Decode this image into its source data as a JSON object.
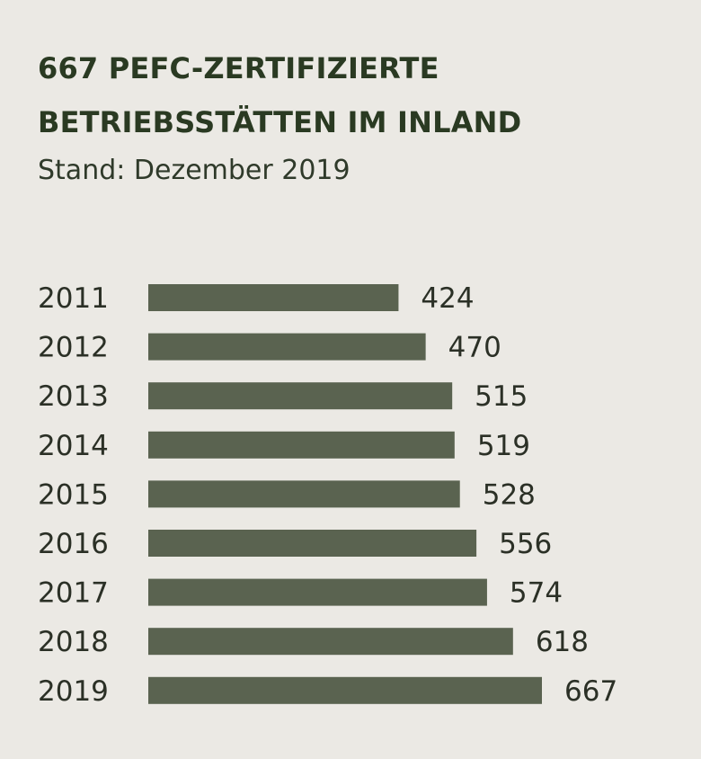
{
  "colors": {
    "background": "#ebe9e4",
    "bar": "#5a6350",
    "title": "#2a3a22",
    "text": "#2b3026"
  },
  "chart_data": {
    "type": "bar",
    "orientation": "horizontal",
    "title_lines": [
      "667 PEFC-ZERTIFIZIERTE",
      "BETRIEBSSTÄTTEN IM INLAND"
    ],
    "subtitle": "Stand: Dezember 2019",
    "categories": [
      "2011",
      "2012",
      "2013",
      "2014",
      "2015",
      "2016",
      "2017",
      "2018",
      "2019"
    ],
    "values": [
      424,
      470,
      515,
      519,
      528,
      556,
      574,
      618,
      667
    ],
    "value_labels": [
      "424",
      "470",
      "515",
      "519",
      "528",
      "556",
      "574",
      "618",
      "667"
    ],
    "xlim": [
      0,
      667
    ],
    "grid": false,
    "legend": "none"
  }
}
